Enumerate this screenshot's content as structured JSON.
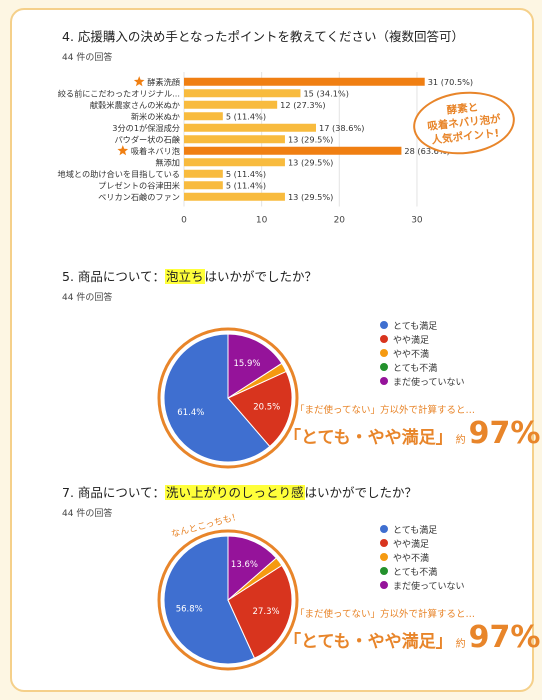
{
  "colors": {
    "orange": "#f07f12",
    "bar": "#f8bb3e",
    "blue": "#3f6fd0",
    "red": "#d8341e",
    "amber": "#f59a11",
    "green": "#23912c",
    "purple": "#95139a",
    "accent": "#e8852a"
  },
  "q4": {
    "title": "4. 応援購入の決め手となったポイントを教えてください（複数回答可）",
    "responses": "44 件の回答",
    "callout": [
      "酵素と",
      "吸着ネバリ泡が",
      "人気ポイント!"
    ],
    "chart_data": {
      "type": "bar",
      "orientation": "horizontal",
      "categories": [
        "酵素洗顔",
        "絞る前にこだわったオリジナル...",
        "献穀米農家さんの米ぬか",
        "新米の米ぬか",
        "3分の1が保湿成分",
        "パウダー状の石鹸",
        "吸着ネバリ泡",
        "無添加",
        "地域との助け合いを目指している",
        "プレゼントの谷津田米",
        "ペリカン石鹸のファン"
      ],
      "values": [
        31,
        15,
        12,
        5,
        17,
        13,
        28,
        13,
        5,
        5,
        13
      ],
      "labels": [
        "31 (70.5%)",
        "15 (34.1%)",
        "12 (27.3%)",
        "5 (11.4%)",
        "17 (38.6%)",
        "13 (29.5%)",
        "28 (63.6%)",
        "13 (29.5%)",
        "5 (11.4%)",
        "5 (11.4%)",
        "13 (29.5%)"
      ],
      "highlight": [
        true,
        false,
        false,
        false,
        false,
        false,
        true,
        false,
        false,
        false,
        false
      ],
      "xticks": [
        0,
        10,
        20,
        30
      ],
      "xlim": [
        0,
        34
      ]
    }
  },
  "q5": {
    "title_pre": "5. 商品について：",
    "title_hl": "泡立ち",
    "title_post": "はいかがでしたか？",
    "responses": "44 件の回答",
    "note_small": "「まだ使ってない」方以外で計算すると…",
    "note_big": "「とても・やや満足」",
    "note_yaku": "約",
    "note_pct": "97%",
    "chart_data": {
      "type": "pie",
      "labels": [
        "とても満足",
        "やや満足",
        "やや不満",
        "とても不満",
        "まだ使っていない"
      ],
      "values": [
        61.4,
        20.5,
        2.3,
        0,
        15.9
      ],
      "slice_labels": [
        "61.4%",
        "20.5%",
        "",
        "",
        "15.9%"
      ]
    }
  },
  "q7": {
    "title_pre": "7. 商品について：",
    "title_hl": "洗い上がりのしっとり感",
    "title_post": "はいかがでしたか？",
    "responses": "44 件の回答",
    "tilt_note": "なんとこっちも！",
    "note_small": "「まだ使ってない」方以外で計算すると…",
    "note_big": "「とても・やや満足」",
    "note_yaku": "約",
    "note_pct": "97%",
    "chart_data": {
      "type": "pie",
      "labels": [
        "とても満足",
        "やや満足",
        "やや不満",
        "とても不満",
        "まだ使っていない"
      ],
      "values": [
        56.8,
        27.3,
        2.3,
        0,
        13.6
      ],
      "slice_labels": [
        "56.8%",
        "27.3%",
        "",
        "",
        "13.6%"
      ]
    }
  }
}
